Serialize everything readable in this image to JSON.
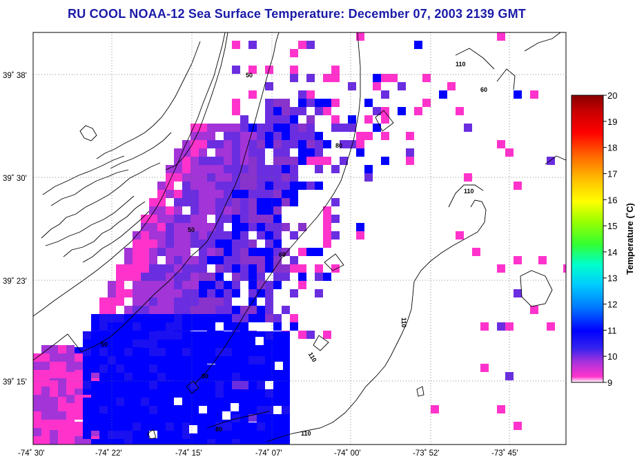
{
  "title": "RU COOL  NOAA-12  Sea Surface Temperature:  December 07, 2003 2139 GMT",
  "map": {
    "lat_ticks": [
      "39˚ 38'",
      "39˚ 30'",
      "39˚ 23'",
      "39˚ 15'"
    ],
    "lon_ticks": [
      "-74˚ 30'",
      "-74˚ 22'",
      "-74˚ 15'",
      "-74˚ 07'",
      "-74˚ 00'",
      "-73˚ 52'",
      "-73˚ 45'"
    ],
    "depth_contour_labels": [
      "50",
      "60",
      "80",
      "110"
    ]
  },
  "colorbar": {
    "title": "Temperature (˚C)",
    "ticks": [
      "20",
      "19",
      "18",
      "17",
      "16",
      "15",
      "14",
      "13",
      "12",
      "11",
      "10",
      "9"
    ],
    "range": [
      9,
      20
    ],
    "colors": [
      "#ff33cc",
      "#8833cc",
      "#0000ff",
      "#00aaff",
      "#00ffcc",
      "#66ff00",
      "#ffff00",
      "#ff9900",
      "#ff0000",
      "#8b0000"
    ]
  },
  "colors": {
    "title": "#1a1aa8",
    "sst_9": "#ff33cc",
    "sst_10": "#8833cc",
    "sst_11": "#0000ff"
  }
}
